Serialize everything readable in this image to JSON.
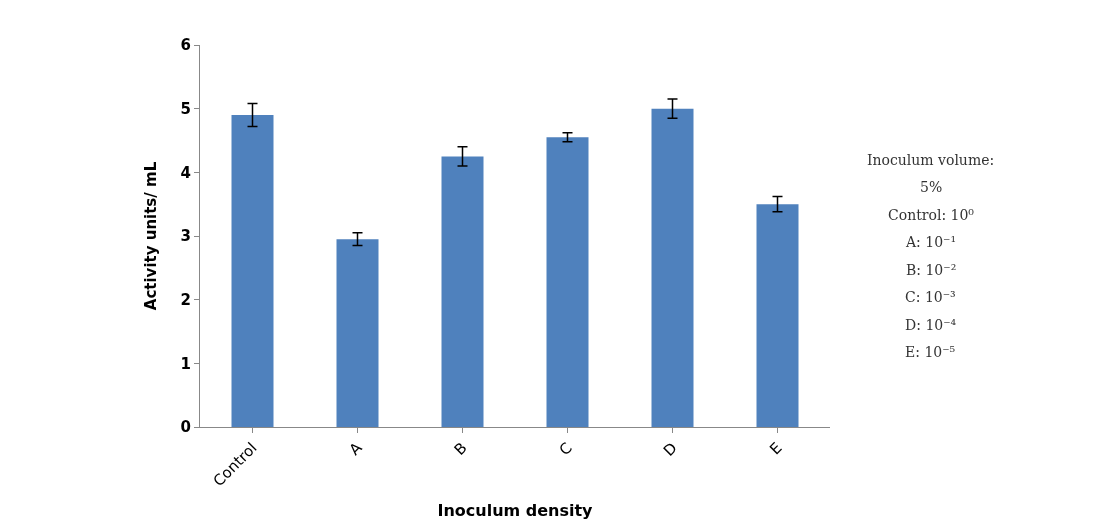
{
  "chart_data": {
    "type": "bar",
    "xlabel": "Inoculum density",
    "ylabel": "Activity units/ mL",
    "categories": [
      "Control",
      "A",
      "B",
      "C",
      "D",
      "E"
    ],
    "values": [
      4.9,
      2.95,
      4.25,
      4.55,
      5.0,
      3.5
    ],
    "errors": [
      0.18,
      0.1,
      0.15,
      0.07,
      0.15,
      0.12
    ],
    "color": "#4f81bd",
    "ylim": [
      0,
      6
    ],
    "yticks": [
      0,
      1,
      2,
      3,
      4,
      5,
      6
    ],
    "annotations": [
      "Inoculum volume:",
      "5%",
      "Control: 10⁰",
      "A: 10⁻¹",
      "B: 10⁻²",
      "C: 10⁻³",
      "D: 10⁻⁴",
      "E: 10⁻⁵"
    ]
  }
}
